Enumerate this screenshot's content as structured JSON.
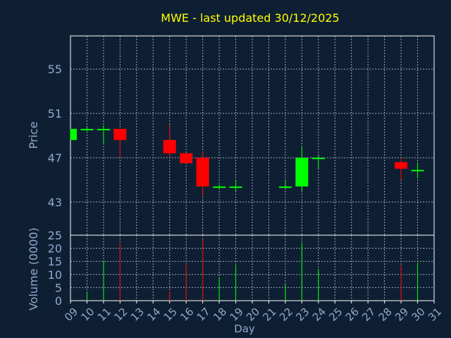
{
  "chart_data": {
    "type": "candlestick",
    "title": "MWE - last updated 30/12/2025",
    "xlabel": "Day",
    "x_ticks": [
      "09",
      "10",
      "11",
      "12",
      "13",
      "14",
      "15",
      "16",
      "17",
      "18",
      "19",
      "20",
      "21",
      "22",
      "23",
      "24",
      "25",
      "26",
      "27",
      "28",
      "29",
      "30",
      "31"
    ],
    "grid": true,
    "colors": {
      "background": "#0f1f33",
      "axis": "#ffffff",
      "grid": "#9aa6b6",
      "label": "#8fa8cc",
      "title": "#ffff00",
      "up": "#00ff00",
      "down": "#ff0000"
    },
    "price_panel": {
      "ylabel": "Price",
      "ylim": [
        40,
        58
      ],
      "y_ticks": [
        "43",
        "47",
        "51",
        "55"
      ],
      "y_tick_values": [
        43,
        47,
        51,
        55
      ],
      "candles": [
        {
          "day": "09",
          "open": 48.6,
          "high": 49.6,
          "low": 48.6,
          "close": 49.6
        },
        {
          "day": "10",
          "open": 49.6,
          "high": 49.8,
          "low": 49.4,
          "close": 49.6
        },
        {
          "day": "11",
          "open": 49.6,
          "high": 49.9,
          "low": 48.2,
          "close": 49.6
        },
        {
          "day": "12",
          "open": 49.6,
          "high": 49.6,
          "low": 47.0,
          "close": 48.6
        },
        {
          "day": "15",
          "open": 48.6,
          "high": 50.0,
          "low": 47.0,
          "close": 47.4
        },
        {
          "day": "16",
          "open": 47.4,
          "high": 47.4,
          "low": 46.5,
          "close": 46.5
        },
        {
          "day": "17",
          "open": 47.0,
          "high": 47.6,
          "low": 43.5,
          "close": 44.4
        },
        {
          "day": "18",
          "open": 44.4,
          "high": 44.6,
          "low": 44.2,
          "close": 44.4
        },
        {
          "day": "19",
          "open": 44.4,
          "high": 45.0,
          "low": 44.0,
          "close": 44.4
        },
        {
          "day": "22",
          "open": 44.4,
          "high": 45.0,
          "low": 44.2,
          "close": 44.4
        },
        {
          "day": "23",
          "open": 44.4,
          "high": 48.0,
          "low": 44.0,
          "close": 47.0
        },
        {
          "day": "24",
          "open": 47.0,
          "high": 47.2,
          "low": 46.0,
          "close": 47.0
        },
        {
          "day": "29",
          "open": 46.6,
          "high": 47.0,
          "low": 45.0,
          "close": 46.0
        },
        {
          "day": "30",
          "open": 45.9,
          "high": 46.6,
          "low": 45.2,
          "close": 45.9
        }
      ]
    },
    "volume_panel": {
      "ylabel": "Volume (0000)",
      "ylim": [
        0,
        25
      ],
      "y_ticks": [
        "0",
        "5",
        "10",
        "15",
        "20",
        "25"
      ],
      "y_tick_values": [
        0,
        5,
        10,
        15,
        20,
        25
      ],
      "bars": [
        {
          "day": "10",
          "value": 3.5,
          "direction": "up"
        },
        {
          "day": "11",
          "value": 15,
          "direction": "up"
        },
        {
          "day": "12",
          "value": 22,
          "direction": "down"
        },
        {
          "day": "15",
          "value": 3.5,
          "direction": "down"
        },
        {
          "day": "16",
          "value": 14,
          "direction": "down"
        },
        {
          "day": "17",
          "value": 23.5,
          "direction": "down"
        },
        {
          "day": "18",
          "value": 9,
          "direction": "up"
        },
        {
          "day": "19",
          "value": 13.5,
          "direction": "up"
        },
        {
          "day": "22",
          "value": 6.5,
          "direction": "up"
        },
        {
          "day": "23",
          "value": 22,
          "direction": "up"
        },
        {
          "day": "24",
          "value": 12,
          "direction": "up"
        },
        {
          "day": "29",
          "value": 13.5,
          "direction": "down"
        },
        {
          "day": "30",
          "value": 14.5,
          "direction": "up"
        }
      ]
    }
  }
}
